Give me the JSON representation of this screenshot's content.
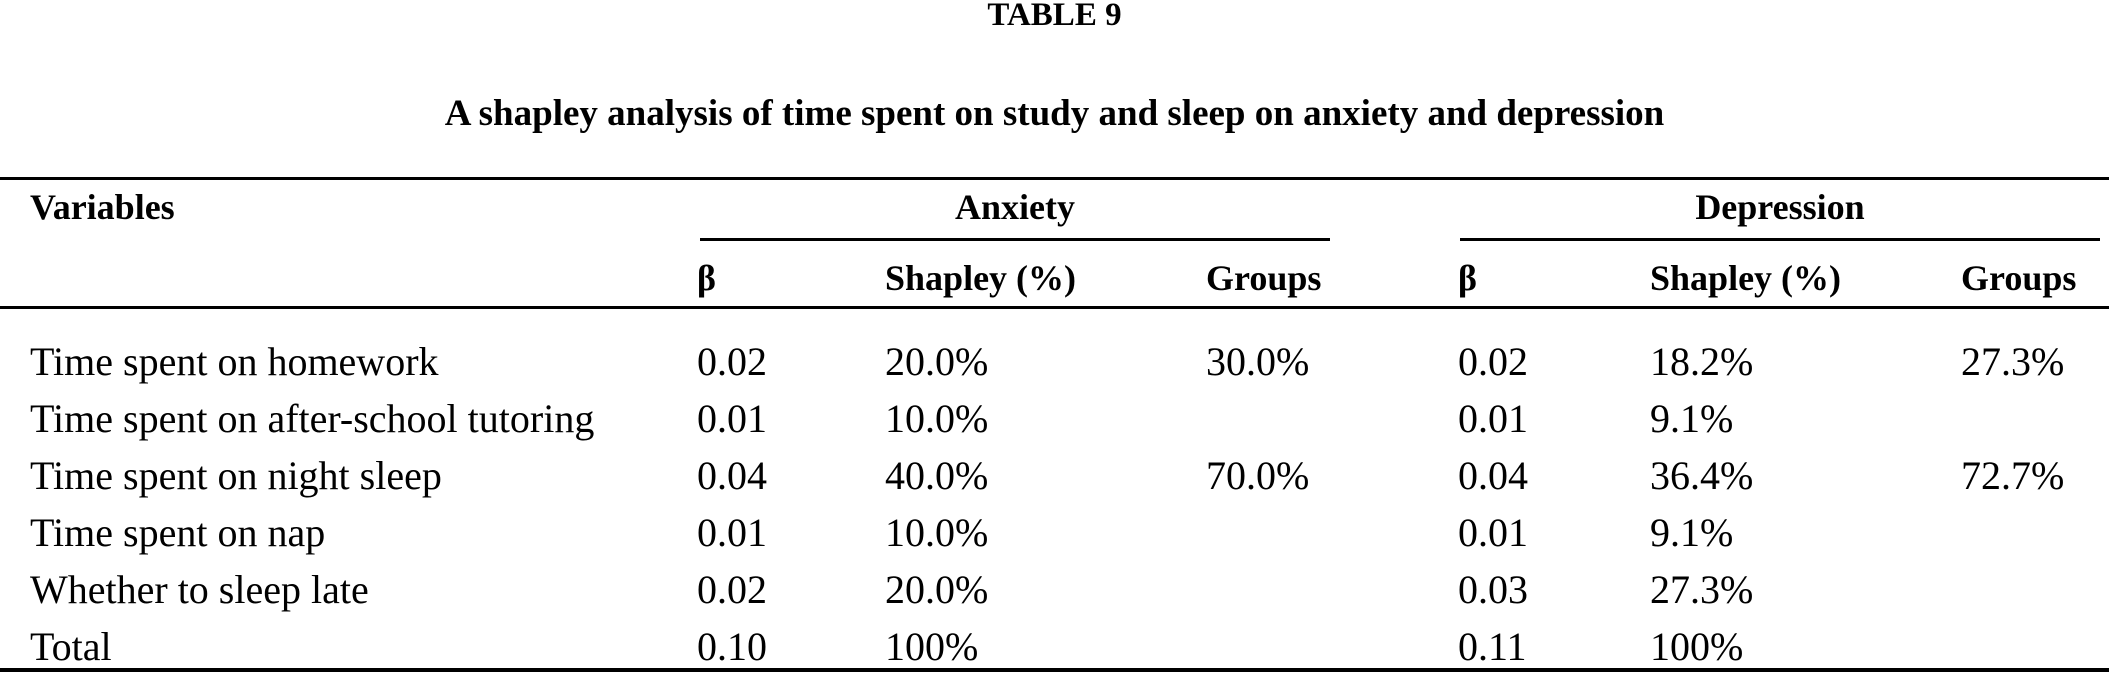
{
  "table": {
    "label": "TABLE 9",
    "caption": "A shapley analysis of time spent on study and sleep on anxiety and depression",
    "columns": {
      "variables": "Variables",
      "group_anxiety": "Anxiety",
      "group_depression": "Depression",
      "beta": "β",
      "shapley": "Shapley (%)",
      "groups": "Groups"
    },
    "rows": [
      {
        "variable": "Time spent on homework",
        "anxiety": {
          "beta": "0.02",
          "shapley": "20.0%",
          "groups": "30.0%"
        },
        "depression": {
          "beta": "0.02",
          "shapley": "18.2%",
          "groups": "27.3%"
        }
      },
      {
        "variable": "Time spent on after-school tutoring",
        "anxiety": {
          "beta": "0.01",
          "shapley": "10.0%",
          "groups": ""
        },
        "depression": {
          "beta": "0.01",
          "shapley": "9.1%",
          "groups": ""
        }
      },
      {
        "variable": "Time spent on night sleep",
        "anxiety": {
          "beta": "0.04",
          "shapley": "40.0%",
          "groups": "70.0%"
        },
        "depression": {
          "beta": "0.04",
          "shapley": "36.4%",
          "groups": "72.7%"
        }
      },
      {
        "variable": "Time spent on nap",
        "anxiety": {
          "beta": "0.01",
          "shapley": "10.0%",
          "groups": ""
        },
        "depression": {
          "beta": "0.01",
          "shapley": "9.1%",
          "groups": ""
        }
      },
      {
        "variable": "Whether to sleep late",
        "anxiety": {
          "beta": "0.02",
          "shapley": "20.0%",
          "groups": ""
        },
        "depression": {
          "beta": "0.03",
          "shapley": "27.3%",
          "groups": ""
        }
      },
      {
        "variable": "Total",
        "anxiety": {
          "beta": "0.10",
          "shapley": "100%",
          "groups": ""
        },
        "depression": {
          "beta": "0.11",
          "shapley": "100%",
          "groups": ""
        }
      }
    ],
    "colors": {
      "text": "#000000",
      "background": "#ffffff",
      "rule": "#000000"
    }
  }
}
